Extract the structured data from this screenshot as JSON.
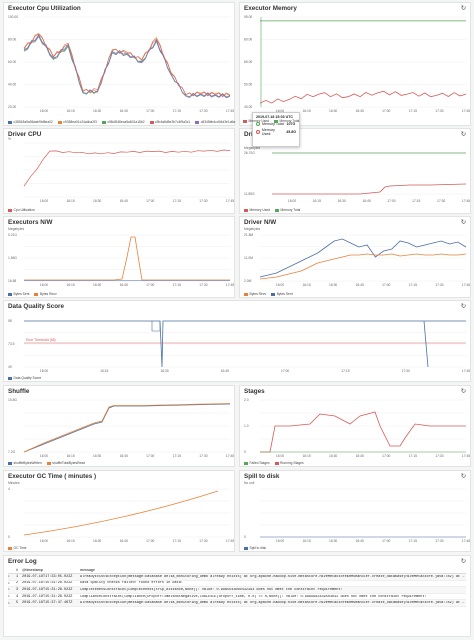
{
  "panels": {
    "cpu_util": {
      "title": "Executor Cpu Utilization",
      "ylabel": "",
      "yticks": [
        "100.00",
        "80.00",
        "60.00",
        "40.00",
        "20.00"
      ],
      "legend": [
        {
          "label": "c38518a9a06dab9fd8ea02",
          "color": "#4a6fa5"
        },
        {
          "label": "c9358ea01c24a4ba2f3",
          "color": "#e8823a"
        },
        {
          "label": "c98d3f48eca5a601a15b2",
          "color": "#58a55c"
        },
        {
          "label": "c9b4a8d5e2b7c4f9a3c1",
          "color": "#d65a5a"
        },
        {
          "label": "c8348bb4cd04d3e1a5a",
          "color": "#8a6fbf"
        }
      ]
    },
    "memory": {
      "title": "Executor Memory",
      "yticks": [
        "95.00",
        "80.00",
        "65.00",
        "50.00",
        "40.00"
      ],
      "legend": [
        {
          "label": "Memory Used",
          "color": "#d65a5a"
        },
        {
          "label": "Memory Total",
          "color": "#58a55c"
        }
      ],
      "tooltip": {
        "title": "2019-07-18 15:03 UTC",
        "rows": [
          {
            "label": "Memory Total:",
            "value": "107G",
            "color": "#58a55c"
          },
          {
            "label": "Memory Used:",
            "value": "45.8G",
            "color": "#d65a5a"
          }
        ]
      }
    },
    "driver_cpu": {
      "title": "Driver CPU",
      "unit": "%",
      "legend": [
        {
          "label": "Cpu Utilization",
          "color": "#d65a5a"
        }
      ]
    },
    "driver_mem": {
      "title": "Dri",
      "unit": "Megabytes",
      "yticks": [
        "26.70G",
        "11.89G"
      ],
      "legend": [
        {
          "label": "Memory Used",
          "color": "#d65a5a"
        },
        {
          "label": "Memory Total",
          "color": "#58a55c"
        }
      ]
    },
    "exec_nw": {
      "title": "Executors N/W",
      "unit": "Megabytes",
      "yticks": [
        "0.21G",
        "1.56G",
        "16.68"
      ],
      "legend": [
        {
          "label": "Bytes Sent",
          "color": "#4a6fa5"
        },
        {
          "label": "Bytes Recv",
          "color": "#e8823a"
        }
      ]
    },
    "driver_nw": {
      "title": "Driver N/W",
      "unit": "Megabytes",
      "yticks": [
        "21.8M",
        "11.0M",
        "2.0M"
      ],
      "legend": [
        {
          "label": "Bytes Recv",
          "color": "#e8823a"
        },
        {
          "label": "Bytes Sent",
          "color": "#4a6fa5"
        }
      ]
    },
    "dq_score": {
      "title": "Data Quality Score",
      "yticks": [
        "98",
        "73.5",
        "49"
      ],
      "threshold_label": "Error Threshold (68)",
      "legend": [
        {
          "label": "Data Quality Score",
          "color": "#4a6fa5"
        }
      ]
    },
    "shuffle": {
      "title": "Shuffle",
      "yticks": [
        "15.8G",
        "7.2G"
      ],
      "legend": [
        {
          "label": "shuffleBytesWritten",
          "color": "#4a6fa5"
        },
        {
          "label": "shuffleTotalBytesRead",
          "color": "#e8823a"
        }
      ]
    },
    "stages": {
      "title": "Stages",
      "yticks": [
        "2.0",
        "1.0",
        "0"
      ],
      "legend": [
        {
          "label": "Failed Stages",
          "color": "#58a55c"
        },
        {
          "label": "Running Stages",
          "color": "#d65a5a"
        }
      ]
    },
    "gc_time": {
      "title": "Executor GC Time ( minutes )",
      "unit": "Minutes",
      "yticks": [
        "4",
        "0"
      ],
      "legend": [
        {
          "label": "GC Time",
          "color": "#e8823a"
        }
      ]
    },
    "spill": {
      "title": "Spill to disk",
      "unit": "No unit",
      "yticks": [
        "0"
      ],
      "legend": [
        {
          "label": "Spill to disk",
          "color": "#4a6fa5"
        }
      ]
    }
  },
  "xticks": [
    "16:00",
    "16:15",
    "16:30",
    "16:45",
    "17:00",
    "17:15",
    "17:30",
    "17:45"
  ],
  "error_log": {
    "title": "Error Log",
    "columns": [
      "#",
      "@timestamp",
      "message"
    ],
    "rows": [
      {
        "num": "1",
        "ts": "2019-07-18T17:33:05.022Z",
        "msg": "AlreadyExistsException(message:Database delta_monitoring_demo already exists) at org.apache.hadoop.hive.metastore.HiveMetaStore$HMSHandler.create_database(HiveMetaStore.java:782) at sun.r..."
      },
      {
        "num": "2",
        "ts": "2019-07-18T15:31:28.022Z",
        "msg": "Data quality checks failed! Found errors in data:"
      },
      {
        "num": "3",
        "ts": "2019-07-18T15:31:28.022Z",
        "msg": "CompletenessConstraint(Completeness(trip_distance,None)): Value: 0.9985543060432394 does not meet the constraint requirement!"
      },
      {
        "num": "4",
        "ts": "2019-07-18T15:31:28.022Z",
        "msg": "ComplianceConstraint(Compliance(DropOffTimeIsNotNegative,COALESCE(dropoff_time, 0.0) >= 0,None)): Value: 0.9999983439503642 does not meet the constraint requirement!"
      },
      {
        "num": "5",
        "ts": "2019-07-18T15:37:47.467Z",
        "msg": "AlreadyExistsException(message:Database delta_monitoring_demo already exists) at org.apache.hadoop.hive.metastore.HiveMetaStore$HMSHandler.create_database(HiveMetaStore.java:782) at sun.r..."
      }
    ]
  },
  "chart_data": [
    {
      "type": "line",
      "title": "Executor Cpu Utilization",
      "x": [
        "15:55",
        "16:00",
        "16:05",
        "16:10",
        "16:15",
        "16:20",
        "16:25",
        "16:30",
        "16:35",
        "16:40",
        "16:45",
        "17:00",
        "17:15",
        "17:30",
        "17:45"
      ],
      "series": [
        {
          "name": "c38518a9a06dab9fd8ea02",
          "values": [
            70,
            88,
            60,
            75,
            18,
            20,
            68,
            66,
            55,
            82,
            40,
            14,
            16,
            15,
            14
          ]
        },
        {
          "name": "c9358ea01c24a4ba2f3",
          "values": [
            72,
            90,
            62,
            78,
            20,
            18,
            70,
            65,
            58,
            85,
            42,
            15,
            17,
            16,
            15
          ]
        },
        {
          "name": "c98d3f48eca5a601a15b2",
          "values": [
            68,
            86,
            58,
            74,
            17,
            19,
            67,
            64,
            56,
            80,
            39,
            14,
            15,
            14,
            13
          ]
        },
        {
          "name": "c9b4a8d5e2b7c4f9a3c1",
          "values": [
            71,
            89,
            61,
            76,
            19,
            21,
            69,
            67,
            57,
            83,
            41,
            15,
            16,
            15,
            14
          ]
        },
        {
          "name": "c8348bb4cd04d3e1a5a",
          "values": [
            69,
            87,
            59,
            77,
            18,
            20,
            66,
            65,
            54,
            81,
            40,
            13,
            15,
            14,
            13
          ]
        }
      ],
      "ylim": [
        0,
        110
      ]
    },
    {
      "type": "line",
      "title": "Executor Memory",
      "x": [
        "15:55",
        "16:15",
        "16:30",
        "16:45",
        "17:00",
        "17:15",
        "17:30",
        "17:45"
      ],
      "series": [
        {
          "name": "Memory Total",
          "values": [
            107,
            107,
            107,
            107,
            107,
            107,
            107,
            107
          ]
        },
        {
          "name": "Memory Used",
          "values": [
            43,
            46,
            50,
            48,
            51,
            50,
            49,
            50
          ]
        }
      ],
      "ylim": [
        40,
        110
      ]
    },
    {
      "type": "line",
      "title": "Driver CPU",
      "x": [
        "15:55",
        "16:00",
        "16:15",
        "16:30",
        "16:45",
        "17:00",
        "17:15",
        "17:30",
        "17:45"
      ],
      "series": [
        {
          "name": "Cpu Utilization",
          "values": [
            20,
            85,
            82,
            80,
            83,
            84,
            83,
            85,
            86
          ]
        }
      ],
      "ylim": [
        0,
        100
      ]
    },
    {
      "type": "line",
      "title": "Data Quality Score",
      "x": [
        "15:55",
        "16:50",
        "17:00",
        "17:45"
      ],
      "series": [
        {
          "name": "Data Quality Score",
          "values": [
            98,
            98,
            49,
            98
          ]
        }
      ],
      "ylim": [
        49,
        98
      ]
    },
    {
      "type": "line",
      "title": "Stages",
      "x": [
        "15:55",
        "16:30",
        "16:45",
        "17:00",
        "17:15",
        "17:30",
        "17:45"
      ],
      "series": [
        {
          "name": "Running Stages",
          "values": [
            0,
            1,
            1.6,
            1.3,
            2.0,
            1.2,
            1.0
          ]
        },
        {
          "name": "Failed Stages",
          "values": [
            0,
            0,
            0,
            0,
            0,
            0,
            0
          ]
        }
      ],
      "ylim": [
        0,
        2
      ]
    },
    {
      "type": "line",
      "title": "Executor GC Time ( minutes )",
      "x": [
        "15:55",
        "17:45"
      ],
      "series": [
        {
          "name": "GC Time",
          "values": [
            0.1,
            4
          ]
        }
      ],
      "ylim": [
        0,
        5
      ]
    }
  ]
}
